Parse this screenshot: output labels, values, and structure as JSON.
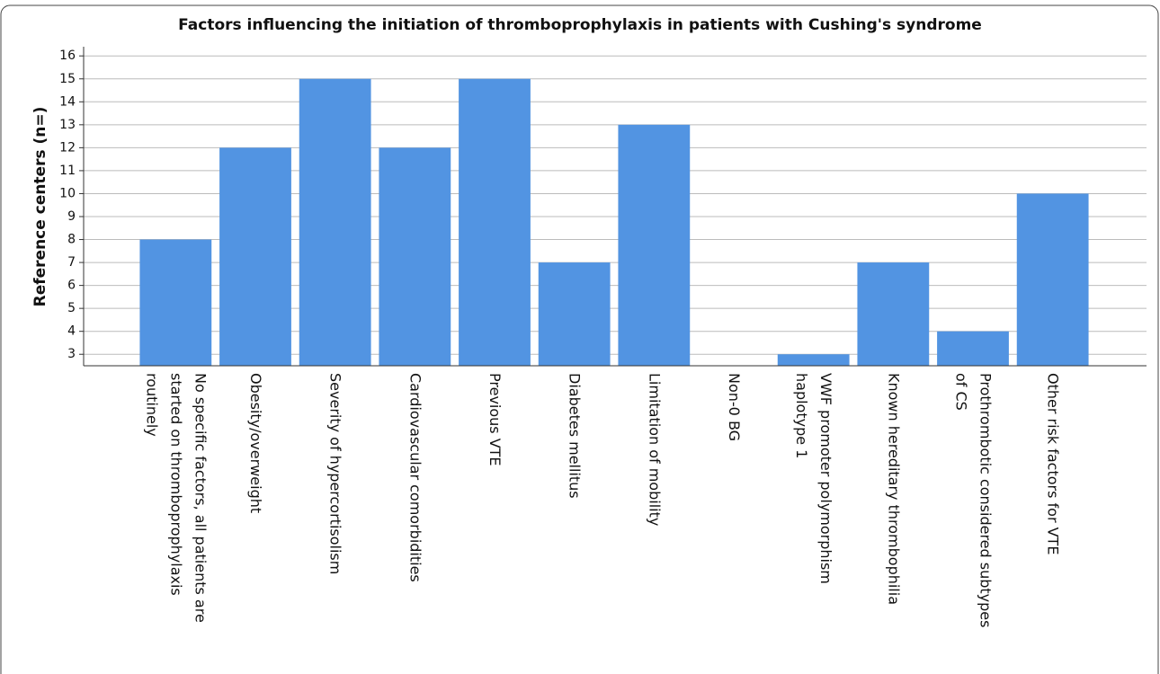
{
  "chart_data": {
    "type": "bar",
    "title": "Factors influencing the initiation of thromboprophylaxis in patients with Cushing's syndrome",
    "y_label": "Reference centers (n=)",
    "categories": [
      "No specific factors, all patients are\nstarted on thromboprophylaxis\nroutinely",
      "Obesity/overweight",
      "Severity of hypercortisolism",
      "Cardiovascular comorbidities",
      "Previous VTE",
      "Diabetes mellitus",
      "Limitation of mobility",
      "Non-0 BG",
      "VWF promoter polymorphism\nhaplotype 1",
      "Known hereditary thrombophilia",
      "Prothrombotic considered subtypes\nof CS",
      "Other risk factors for VTE"
    ],
    "values": [
      8,
      12,
      15,
      12,
      15,
      7,
      13,
      2,
      3,
      7,
      4,
      10
    ],
    "color": "#5294e2",
    "ylim": [
      2.5,
      16.4
    ],
    "yticks": [
      3,
      4,
      5,
      6,
      7,
      8,
      9,
      10,
      11,
      12,
      13,
      14,
      15,
      16
    ],
    "grid": true
  }
}
